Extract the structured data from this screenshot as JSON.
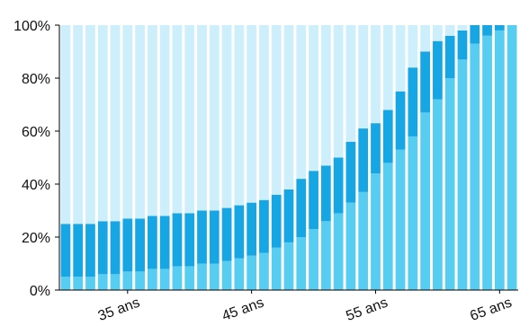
{
  "chart_data": {
    "type": "bar",
    "stacked": true,
    "title": "",
    "xlabel": "",
    "ylabel": "",
    "ylim": [
      0,
      100
    ],
    "grid": false,
    "legend": "none",
    "x_ages": [
      30,
      31,
      32,
      33,
      34,
      35,
      36,
      37,
      38,
      39,
      40,
      41,
      42,
      43,
      44,
      45,
      46,
      47,
      48,
      49,
      50,
      51,
      52,
      53,
      54,
      55,
      56,
      57,
      58,
      59,
      60,
      61,
      62,
      63,
      64,
      65,
      66
    ],
    "x_tick_labels": [
      {
        "age": 35,
        "label": "35 ans"
      },
      {
        "age": 45,
        "label": "45 ans"
      },
      {
        "age": 55,
        "label": "55 ans"
      },
      {
        "age": 65,
        "label": "65 ans"
      }
    ],
    "y_tick_labels": [
      "0%",
      "20%",
      "40%",
      "60%",
      "80%",
      "100%"
    ],
    "y_tick_values": [
      0,
      20,
      40,
      60,
      80,
      100
    ],
    "series": [
      {
        "color": "#58cdf2",
        "values": [
          5,
          5,
          5,
          6,
          6,
          7,
          7,
          8,
          8,
          9,
          9,
          10,
          10,
          11,
          12,
          13,
          14,
          16,
          18,
          20,
          23,
          26,
          29,
          33,
          37,
          44,
          48,
          53,
          58,
          67,
          72,
          80,
          87,
          93,
          96,
          98,
          100
        ]
      },
      {
        "color": "#17a6e4",
        "values": [
          20,
          20,
          20,
          20,
          20,
          20,
          20,
          20,
          20,
          20,
          20,
          20,
          20,
          20,
          20,
          20,
          20,
          20,
          20,
          22,
          22,
          21,
          21,
          23,
          24,
          19,
          20,
          22,
          26,
          23,
          22,
          16,
          11,
          7,
          4,
          2,
          0
        ]
      },
      {
        "color": "#cdeefb",
        "values": [
          75,
          75,
          75,
          74,
          74,
          73,
          73,
          72,
          72,
          71,
          71,
          70,
          70,
          69,
          68,
          67,
          66,
          64,
          62,
          58,
          55,
          53,
          50,
          44,
          39,
          37,
          32,
          25,
          16,
          10,
          6,
          4,
          2,
          0,
          0,
          0,
          0
        ]
      }
    ]
  }
}
